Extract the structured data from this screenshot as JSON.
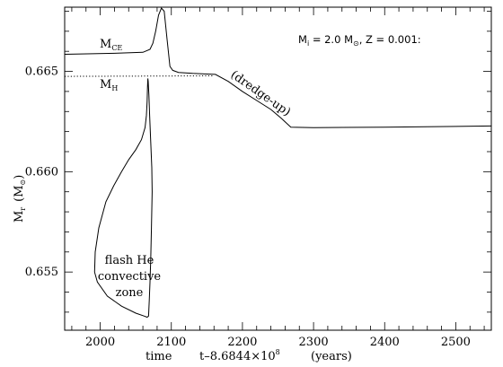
{
  "chart_data": {
    "type": "line",
    "title": "",
    "xlabel": {
      "time": "time",
      "formula": "t–8.6844×10",
      "exponent": "8",
      "units": "(years)"
    },
    "ylabel": {
      "symbol": "M",
      "subscript": "r",
      "units_open": "(M",
      "units_symbol": "⊙",
      "units_close": ")"
    },
    "xlim": [
      1950,
      2550
    ],
    "ylim": [
      0.6521,
      0.6682
    ],
    "xticks": [
      2000,
      2100,
      2200,
      2300,
      2400,
      2500
    ],
    "xtick_labels": [
      "2000",
      "2100",
      "2200",
      "2300",
      "2400",
      "2500"
    ],
    "yticks": [
      0.655,
      0.66,
      0.665
    ],
    "ytick_labels": [
      "0.655",
      "0.660",
      "0.665"
    ],
    "annotation_params": {
      "mass_symbol": "M",
      "mass_sub": "i",
      "mass_value": " = 2.0 M",
      "sun": "⊙",
      "metallicity": ", Z = 0.001:"
    },
    "series": [
      {
        "name": "M_CE",
        "label_main": "M",
        "label_sub": "CE",
        "style": "solid",
        "x": [
          1950,
          2020,
          2060,
          2070,
          2074,
          2078,
          2082,
          2086,
          2090,
          2094,
          2098,
          2102,
          2110,
          2130,
          2150,
          2162,
          2180,
          2200,
          2220,
          2240,
          2255,
          2268,
          2300,
          2400,
          2550
        ],
        "y": [
          0.66585,
          0.6659,
          0.66595,
          0.6661,
          0.6664,
          0.667,
          0.6678,
          0.66815,
          0.668,
          0.6666,
          0.66525,
          0.66505,
          0.66495,
          0.6649,
          0.66487,
          0.66485,
          0.6645,
          0.664,
          0.66355,
          0.6631,
          0.66265,
          0.66222,
          0.6622,
          0.66222,
          0.66228
        ]
      },
      {
        "name": "M_H",
        "label_main": "M",
        "label_sub": "H",
        "style": "dotted",
        "x": [
          1950,
          2100,
          2160
        ],
        "y": [
          0.66475,
          0.66477,
          0.66478
        ]
      },
      {
        "name": "flash He convective zone",
        "label_lines": [
          "flash He",
          "convective",
          "zone"
        ],
        "style": "solid",
        "x": [
          2067,
          2066.5,
          2066,
          2065,
          2063,
          2058,
          2050,
          2040,
          2030,
          2019,
          2008,
          1998,
          1993,
          1992,
          1996,
          2010,
          2030,
          2050,
          2062,
          2066,
          2068,
          2069,
          2070,
          2071,
          2072,
          2073,
          2072.5,
          2071,
          2069.5,
          2068.5,
          2067.5,
          2067
        ],
        "y": [
          0.66465,
          0.6642,
          0.6635,
          0.6628,
          0.6622,
          0.6616,
          0.6611,
          0.6606,
          0.66,
          0.6593,
          0.6585,
          0.6572,
          0.656,
          0.655,
          0.6545,
          0.6538,
          0.6533,
          0.65295,
          0.6528,
          0.65275,
          0.6528,
          0.6536,
          0.6545,
          0.6556,
          0.6572,
          0.659,
          0.6602,
          0.6615,
          0.6628,
          0.6638,
          0.6645,
          0.66465
        ]
      }
    ],
    "annotations": [
      {
        "text": "(dredge-up)"
      }
    ]
  }
}
